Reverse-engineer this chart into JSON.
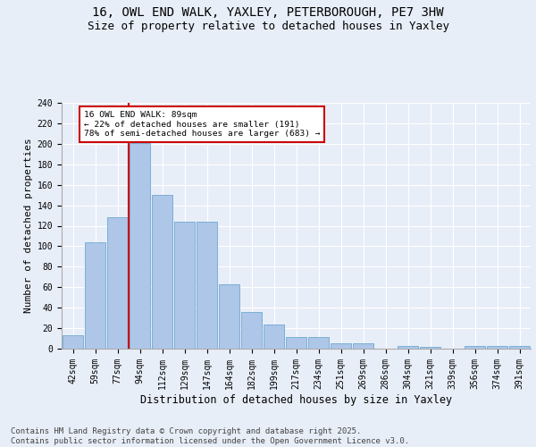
{
  "title_line1": "16, OWL END WALK, YAXLEY, PETERBOROUGH, PE7 3HW",
  "title_line2": "Size of property relative to detached houses in Yaxley",
  "xlabel": "Distribution of detached houses by size in Yaxley",
  "ylabel": "Number of detached properties",
  "categories": [
    "42sqm",
    "59sqm",
    "77sqm",
    "94sqm",
    "112sqm",
    "129sqm",
    "147sqm",
    "164sqm",
    "182sqm",
    "199sqm",
    "217sqm",
    "234sqm",
    "251sqm",
    "269sqm",
    "286sqm",
    "304sqm",
    "321sqm",
    "339sqm",
    "356sqm",
    "374sqm",
    "391sqm"
  ],
  "values": [
    13,
    104,
    128,
    201,
    150,
    124,
    124,
    63,
    36,
    24,
    11,
    11,
    5,
    5,
    0,
    3,
    2,
    0,
    3,
    3,
    3
  ],
  "bar_color": "#aec6e8",
  "bar_edge_color": "#7aafd4",
  "background_color": "#e8eef8",
  "plot_bg_color": "#e8eef8",
  "vline_color": "#cc0000",
  "annotation_text": "16 OWL END WALK: 89sqm\n← 22% of detached houses are smaller (191)\n78% of semi-detached houses are larger (683) →",
  "annotation_box_color": "#cc0000",
  "footer_text": "Contains HM Land Registry data © Crown copyright and database right 2025.\nContains public sector information licensed under the Open Government Licence v3.0.",
  "ylim": [
    0,
    240
  ],
  "yticks": [
    0,
    20,
    40,
    60,
    80,
    100,
    120,
    140,
    160,
    180,
    200,
    220,
    240
  ],
  "title_fontsize": 10,
  "subtitle_fontsize": 9,
  "axis_label_fontsize": 8,
  "tick_fontsize": 7,
  "footer_fontsize": 6.5
}
